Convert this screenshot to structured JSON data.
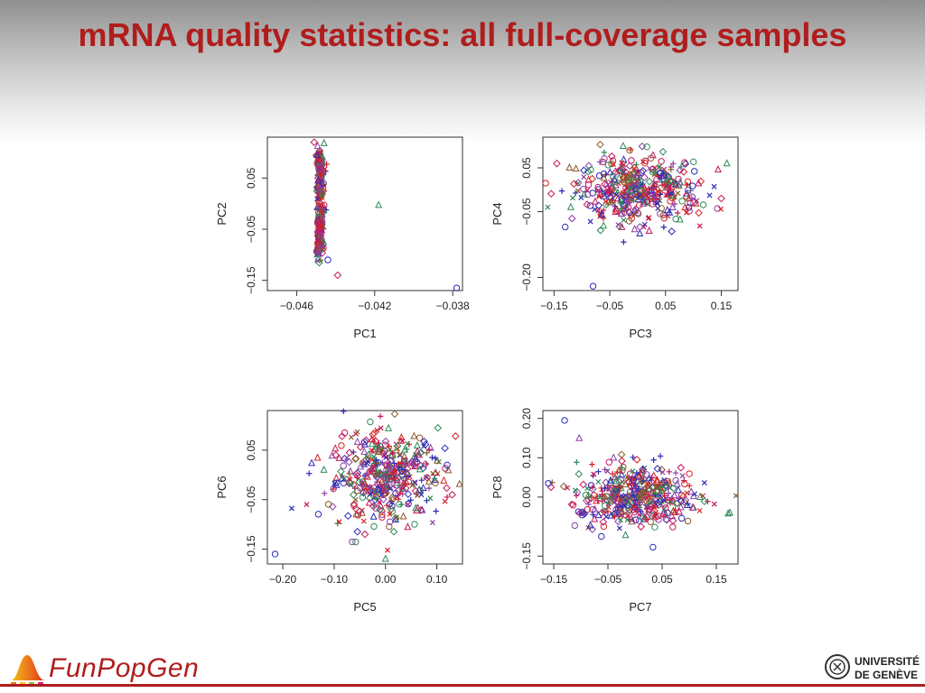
{
  "slide": {
    "title": "mRNA quality statistics: all full-coverage samples",
    "logo_left": "FunPopGen",
    "logo_right_line1": "UNIVERSITÉ",
    "logo_right_line2": "DE GENÈVE"
  },
  "colors": {
    "title": "#b01d1d",
    "series": [
      "#d62020",
      "#2a2ab8",
      "#8a3fa8",
      "#2e8b57",
      "#8b5a2b",
      "#c2185b"
    ]
  },
  "markers": [
    "circle",
    "triangle",
    "diamond",
    "plus",
    "cross"
  ],
  "chart_data": [
    {
      "type": "scatter",
      "title": "",
      "xlabel": "PC1",
      "ylabel": "PC2",
      "xlim": [
        -0.0475,
        -0.0375
      ],
      "ylim": [
        -0.17,
        0.13
      ],
      "xticks": [
        -0.046,
        -0.042,
        -0.038
      ],
      "xtick_labels": [
        "−0.046",
        "−0.042",
        "−0.038"
      ],
      "yticks": [
        -0.15,
        -0.05,
        0.05
      ],
      "ytick_labels": [
        "−0.15",
        "−0.05",
        "0.05"
      ],
      "grid": false,
      "shape": "arc",
      "point_count": 340,
      "outliers": [
        [
          -0.0378,
          -0.165
        ],
        [
          -0.0418,
          -0.003
        ],
        [
          -0.0439,
          -0.14
        ],
        [
          -0.0444,
          -0.11
        ],
        [
          -0.0446,
          0.118
        ],
        [
          -0.0451,
          0.12
        ]
      ]
    },
    {
      "type": "scatter",
      "title": "",
      "xlabel": "PC3",
      "ylabel": "PC4",
      "xlim": [
        -0.17,
        0.18
      ],
      "ylim": [
        -0.23,
        0.12
      ],
      "xticks": [
        -0.15,
        -0.05,
        0.05,
        0.15
      ],
      "xtick_labels": [
        "−0.15",
        "−0.05",
        "0.05",
        "0.15"
      ],
      "yticks": [
        -0.2,
        -0.05,
        0.05
      ],
      "ytick_labels": [
        "−0.20",
        "−0.05",
        "0.05"
      ],
      "grid": false,
      "shape": "cloud",
      "center": [
        0.0,
        0.0
      ],
      "spread": [
        0.055,
        0.038
      ],
      "point_count": 420,
      "outliers": [
        [
          -0.13,
          -0.085
        ],
        [
          -0.12,
          -0.04
        ],
        [
          -0.145,
          0.06
        ],
        [
          -0.08,
          -0.22
        ],
        [
          0.16,
          0.06
        ],
        [
          0.15,
          -0.02
        ]
      ]
    },
    {
      "type": "scatter",
      "title": "",
      "xlabel": "PC5",
      "ylabel": "PC6",
      "xlim": [
        -0.23,
        0.15
      ],
      "ylim": [
        -0.18,
        0.13
      ],
      "xticks": [
        -0.2,
        -0.1,
        0.0,
        0.1
      ],
      "xtick_labels": [
        "−0.20",
        "−0.10",
        "0.00",
        "0.10"
      ],
      "yticks": [
        -0.15,
        -0.05,
        0.05
      ],
      "ytick_labels": [
        "−0.15",
        "−0.05",
        "0.05"
      ],
      "grid": false,
      "shape": "cloud",
      "center": [
        0.0,
        0.0
      ],
      "spread": [
        0.055,
        0.045
      ],
      "point_count": 420,
      "outliers": [
        [
          -0.215,
          -0.16
        ],
        [
          -0.12,
          0.01
        ],
        [
          0.13,
          -0.04
        ],
        [
          0.12,
          0.02
        ],
        [
          0.0,
          -0.17
        ],
        [
          -0.04,
          -0.12
        ]
      ]
    },
    {
      "type": "scatter",
      "title": "",
      "xlabel": "PC7",
      "ylabel": "PC8",
      "xlim": [
        -0.17,
        0.19
      ],
      "ylim": [
        -0.17,
        0.22
      ],
      "xticks": [
        -0.15,
        -0.05,
        0.05,
        0.15
      ],
      "xtick_labels": [
        "−0.15",
        "−0.05",
        "0.05",
        "0.15"
      ],
      "yticks": [
        -0.15,
        0.0,
        0.1,
        0.2
      ],
      "ytick_labels": [
        "−0.15",
        "0.00",
        "0.10",
        "0.20"
      ],
      "grid": false,
      "shape": "cloud",
      "center": [
        0.0,
        0.0
      ],
      "spread": [
        0.052,
        0.042
      ],
      "point_count": 420,
      "outliers": [
        [
          -0.13,
          0.195
        ],
        [
          0.175,
          -0.04
        ],
        [
          -0.155,
          0.025
        ],
        [
          -0.16,
          0.035
        ],
        [
          0.12,
          0.0
        ],
        [
          0.07,
          -0.06
        ]
      ]
    }
  ]
}
